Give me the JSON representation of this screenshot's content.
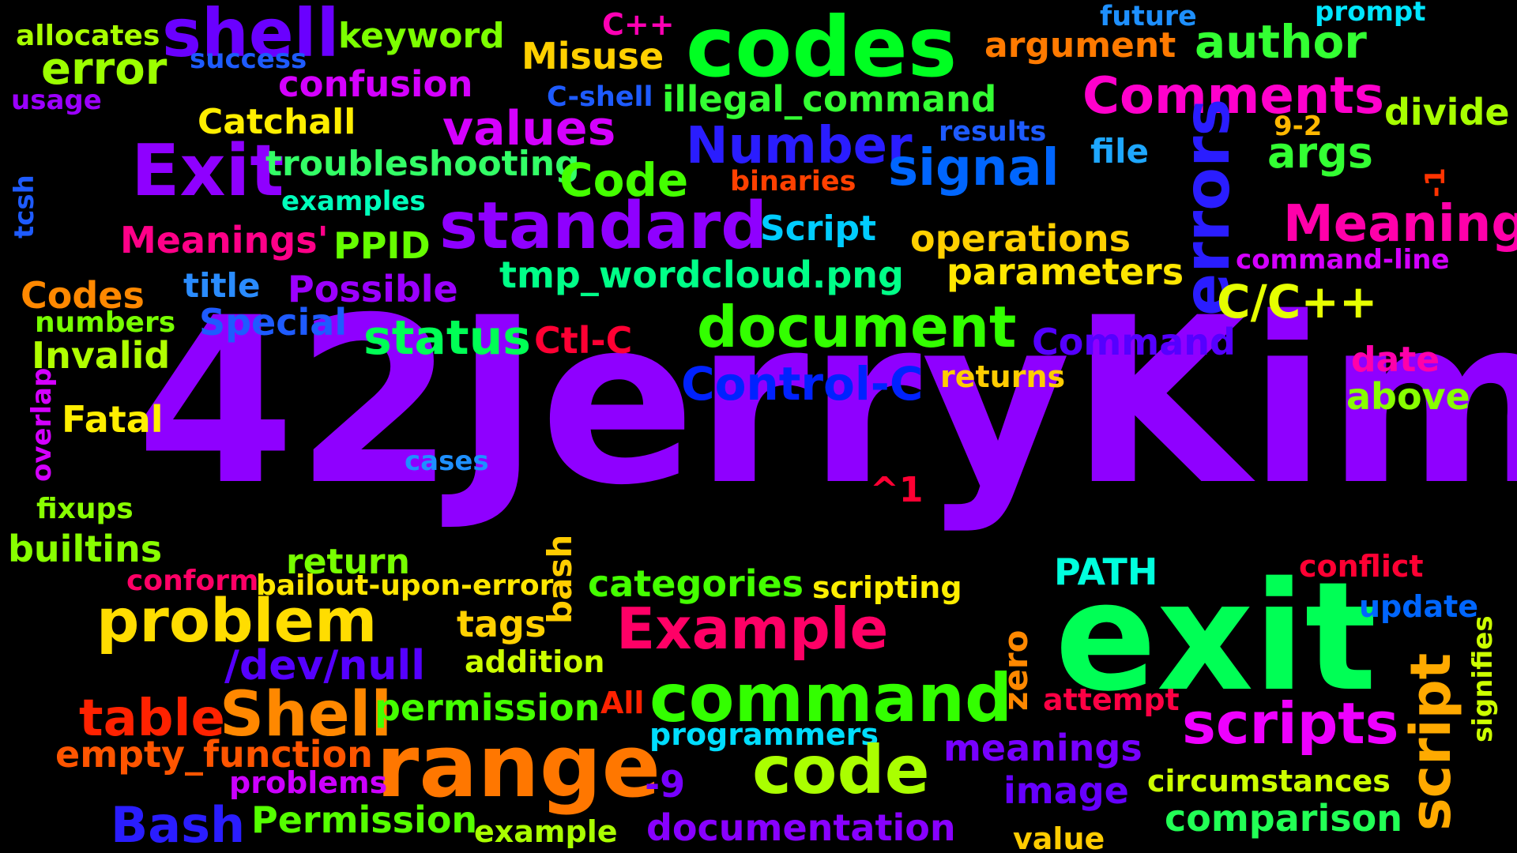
{
  "wordcloud": {
    "words": [
      {
        "text": "42JerryKim",
        "color": "#8f00ff"
      },
      {
        "text": "codes",
        "color": "#00ff22"
      },
      {
        "text": "exit",
        "color": "#00ff55"
      },
      {
        "text": "shell",
        "color": "#6a00ff"
      },
      {
        "text": "allocates",
        "color": "#a8ff00"
      },
      {
        "text": "error",
        "color": "#9cff00"
      },
      {
        "text": "success",
        "color": "#1e5bff"
      },
      {
        "text": "usage",
        "color": "#9b00ff"
      },
      {
        "text": "keyword",
        "color": "#7cff00"
      },
      {
        "text": "C++",
        "color": "#ff00b4"
      },
      {
        "text": "Misuse",
        "color": "#ffd000"
      },
      {
        "text": "confusion",
        "color": "#d400ff"
      },
      {
        "text": "C-shell",
        "color": "#1e5bff"
      },
      {
        "text": "illegal_command",
        "color": "#33ff33"
      },
      {
        "text": "future",
        "color": "#1e90ff"
      },
      {
        "text": "prompt",
        "color": "#00e5ff"
      },
      {
        "text": "argument",
        "color": "#ff7a00"
      },
      {
        "text": "author",
        "color": "#33ff33"
      },
      {
        "text": "Comments",
        "color": "#ff00cc"
      },
      {
        "text": "divide",
        "color": "#a8ff00"
      },
      {
        "text": "9-2",
        "color": "#ffb800"
      },
      {
        "text": "Catchall",
        "color": "#ffee00"
      },
      {
        "text": "values",
        "color": "#d400ff"
      },
      {
        "text": "Number",
        "color": "#2a1dff"
      },
      {
        "text": "results",
        "color": "#1e5bff"
      },
      {
        "text": "file",
        "color": "#1ea7ff"
      },
      {
        "text": "args",
        "color": "#33ff33"
      },
      {
        "text": "-1",
        "color": "#ff3300"
      },
      {
        "text": "Exit",
        "color": "#8f00ff"
      },
      {
        "text": "troubleshooting",
        "color": "#33ff66"
      },
      {
        "text": "Code",
        "color": "#44ff00"
      },
      {
        "text": "binaries",
        "color": "#ff4000"
      },
      {
        "text": "signal",
        "color": "#0066ff"
      },
      {
        "text": "errors",
        "color": "#2a1dff"
      },
      {
        "text": "tcsh",
        "color": "#1e5bff"
      },
      {
        "text": "examples",
        "color": "#00ffbb"
      },
      {
        "text": "standard",
        "color": "#8f00ff"
      },
      {
        "text": "Script",
        "color": "#00ccff"
      },
      {
        "text": "operations",
        "color": "#ffd000"
      },
      {
        "text": "Meaning",
        "color": "#ff00aa"
      },
      {
        "text": "command-line",
        "color": "#d400ff"
      },
      {
        "text": "Meanings'",
        "color": "#ff0088"
      },
      {
        "text": "PPID",
        "color": "#66ff00"
      },
      {
        "text": "tmp_wordcloud.png",
        "color": "#00ff88"
      },
      {
        "text": "parameters",
        "color": "#ffe600"
      },
      {
        "text": "Codes",
        "color": "#ff8800"
      },
      {
        "text": "title",
        "color": "#2a8cff"
      },
      {
        "text": "Possible",
        "color": "#9b00ff"
      },
      {
        "text": "C/C++",
        "color": "#e6ff00"
      },
      {
        "text": "numbers",
        "color": "#77ff00"
      },
      {
        "text": "Special",
        "color": "#1e5bff"
      },
      {
        "text": "document",
        "color": "#33ff00"
      },
      {
        "text": "status",
        "color": "#00ff55"
      },
      {
        "text": "Ctl-C",
        "color": "#ff0033"
      },
      {
        "text": "Command",
        "color": "#5500ff"
      },
      {
        "text": "Invalid",
        "color": "#b0ff00"
      },
      {
        "text": "date",
        "color": "#ff00aa"
      },
      {
        "text": "overlap",
        "color": "#d400ff"
      },
      {
        "text": "Control-C",
        "color": "#0022ff"
      },
      {
        "text": "returns",
        "color": "#ffcc00"
      },
      {
        "text": "above",
        "color": "#88ff00"
      },
      {
        "text": "Fatal",
        "color": "#ffee00"
      },
      {
        "text": "cases",
        "color": "#1e90ff"
      },
      {
        "text": "^1",
        "color": "#ff0033"
      },
      {
        "text": "fixups",
        "color": "#88ff00"
      },
      {
        "text": "builtins",
        "color": "#88ff00"
      },
      {
        "text": "return",
        "color": "#77ff00"
      },
      {
        "text": "bash",
        "color": "#ffcc00"
      },
      {
        "text": "PATH",
        "color": "#00ffdd"
      },
      {
        "text": "conflict",
        "color": "#ff0033"
      },
      {
        "text": "conform",
        "color": "#ff0066"
      },
      {
        "text": "bailout-upon-error",
        "color": "#ffe600"
      },
      {
        "text": "categories",
        "color": "#44ff00"
      },
      {
        "text": "scripting",
        "color": "#ffee00"
      },
      {
        "text": "update",
        "color": "#0066ff"
      },
      {
        "text": "signifies",
        "color": "#ccff00"
      },
      {
        "text": "problem",
        "color": "#ffdd00"
      },
      {
        "text": "tags",
        "color": "#ffd000"
      },
      {
        "text": "Example",
        "color": "#ff0066"
      },
      {
        "text": "/dev/null",
        "color": "#5500ff"
      },
      {
        "text": "addition",
        "color": "#ccff00"
      },
      {
        "text": "zero",
        "color": "#ff8800"
      },
      {
        "text": "script",
        "color": "#ffaa00"
      },
      {
        "text": "table",
        "color": "#ff2200"
      },
      {
        "text": "Shell",
        "color": "#ff8800"
      },
      {
        "text": "permission",
        "color": "#44ff00"
      },
      {
        "text": "All",
        "color": "#ff2200"
      },
      {
        "text": "command",
        "color": "#33ff00"
      },
      {
        "text": "attempt",
        "color": "#ff0044"
      },
      {
        "text": "scripts",
        "color": "#ee00ff"
      },
      {
        "text": "empty_function",
        "color": "#ff5500"
      },
      {
        "text": "range",
        "color": "#ff7700"
      },
      {
        "text": "programmers",
        "color": "#00ddff"
      },
      {
        "text": "meanings",
        "color": "#7700ff"
      },
      {
        "text": "problems",
        "color": "#cc00ff"
      },
      {
        "text": "-9",
        "color": "#7700ff"
      },
      {
        "text": "code",
        "color": "#aaff00"
      },
      {
        "text": "image",
        "color": "#6600ff"
      },
      {
        "text": "circumstances",
        "color": "#ccff00"
      },
      {
        "text": "comparison",
        "color": "#22ff55"
      },
      {
        "text": "Bash",
        "color": "#2a1dff"
      },
      {
        "text": "Permission",
        "color": "#55ff00"
      },
      {
        "text": "example",
        "color": "#aaff00"
      },
      {
        "text": "documentation",
        "color": "#8800ff"
      },
      {
        "text": "value",
        "color": "#ffcc00"
      }
    ]
  }
}
